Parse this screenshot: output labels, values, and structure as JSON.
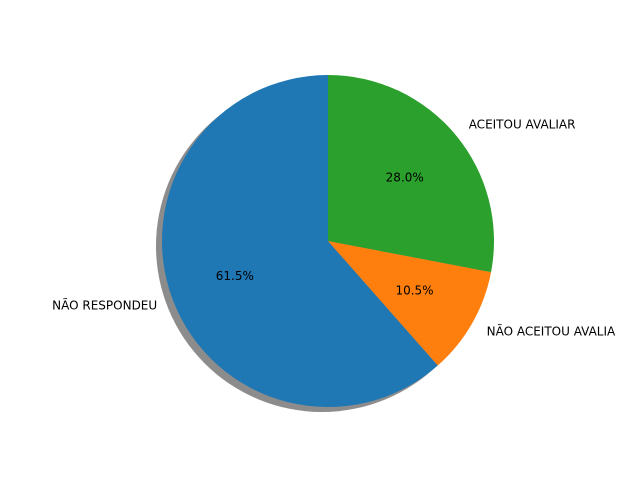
{
  "chart_data": {
    "type": "pie",
    "title": "",
    "categories": [
      "NÃO RESPONDEU",
      "NÃO ACEITOU AVALIA",
      "ACEITOU AVALIAR"
    ],
    "values": [
      61.5,
      10.5,
      28.0
    ],
    "percent_labels": [
      "61.5%",
      "10.5%",
      "28.0%"
    ],
    "colors": [
      "#1f77b4",
      "#ff7f0e",
      "#2ca02c"
    ],
    "start_angle": 90,
    "direction": "counterclockwise",
    "shadow": true,
    "legend": "none"
  }
}
